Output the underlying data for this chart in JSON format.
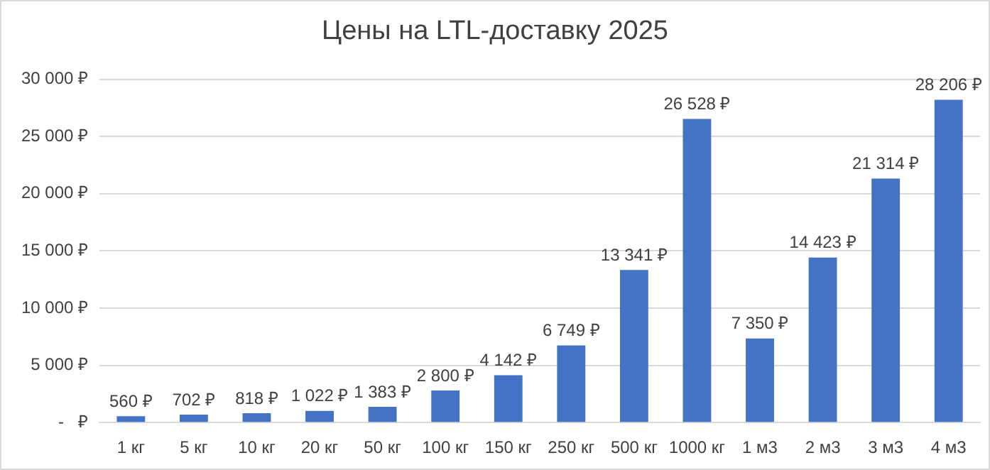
{
  "chart_data": {
    "type": "bar",
    "title": "Цены на LTL-доставку 2025",
    "categories": [
      "1 кг",
      "5 кг",
      "10 кг",
      "20 кг",
      "50 кг",
      "100 кг",
      "150 кг",
      "250 кг",
      "500 кг",
      "1000 кг",
      "1 м3",
      "2 м3",
      "3 м3",
      "4 м3"
    ],
    "values": [
      560,
      702,
      818,
      1022,
      1383,
      2800,
      4142,
      6749,
      13341,
      26528,
      7350,
      14423,
      21314,
      28206
    ],
    "value_labels": [
      "560 ₽",
      "702 ₽",
      "818 ₽",
      "1 022 ₽",
      "1 383 ₽",
      "2 800 ₽",
      "4 142 ₽",
      "6 749 ₽",
      "13 341 ₽",
      "26 528 ₽",
      "7 350 ₽",
      "14 423 ₽",
      "21 314 ₽",
      "28 206 ₽"
    ],
    "color": "#4472c4",
    "ylim": [
      0,
      30000
    ],
    "yticks": [
      {
        "value": 0,
        "label": "-   ₽"
      },
      {
        "value": 5000,
        "label": "5 000 ₽"
      },
      {
        "value": 10000,
        "label": "10 000 ₽"
      },
      {
        "value": 15000,
        "label": "15 000 ₽"
      },
      {
        "value": 20000,
        "label": "20 000 ₽"
      },
      {
        "value": 25000,
        "label": "25 000 ₽"
      },
      {
        "value": 30000,
        "label": "30 000 ₽"
      }
    ],
    "grid": "y",
    "legend": false
  }
}
